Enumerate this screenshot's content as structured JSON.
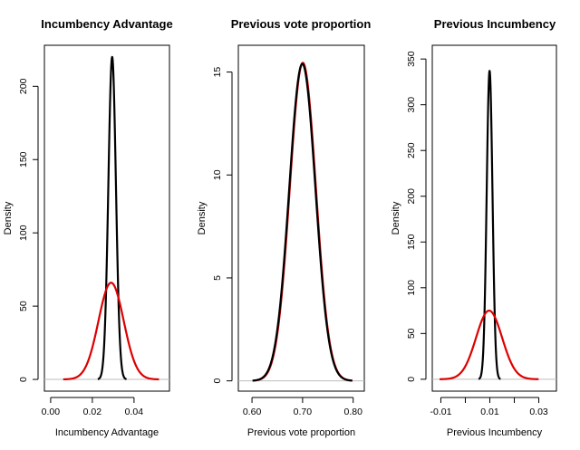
{
  "chart_data": [
    {
      "type": "line",
      "title": "Incumbency Advantage",
      "xlabel": "Incumbency Advantage",
      "ylabel": "Density",
      "xlim": [
        -0.003,
        0.057
      ],
      "ylim": [
        -8,
        228
      ],
      "xticks": [
        0.0,
        0.02,
        0.04
      ],
      "xtick_labels": [
        "0.00",
        "0.02",
        "0.04"
      ],
      "yticks": [
        0,
        50,
        100,
        150,
        200
      ],
      "ytick_labels": [
        "0",
        "50",
        "100",
        "150",
        "200"
      ],
      "zero_line": true,
      "series": [
        {
          "color": "#000000",
          "kind": "normal",
          "mean": 0.0295,
          "peak": 220
        },
        {
          "color": "#dd0000",
          "kind": "normal",
          "mean": 0.029,
          "peak": 66
        }
      ]
    },
    {
      "type": "line",
      "title": "Previous vote proportion",
      "xlabel": "Previous vote proportion",
      "ylabel": "Density",
      "xlim": [
        0.573,
        0.822
      ],
      "ylim": [
        -0.5,
        16.3
      ],
      "xticks": [
        0.6,
        0.7,
        0.8
      ],
      "xtick_labels": [
        "0.60",
        "0.70",
        "0.80"
      ],
      "yticks": [
        0,
        5,
        10,
        15
      ],
      "ytick_labels": [
        "0",
        "5",
        "10",
        "15"
      ],
      "zero_line": true,
      "series": [
        {
          "color": "#dd0000",
          "kind": "normal",
          "mean": 0.7005,
          "peak": 15.45
        },
        {
          "color": "#000000",
          "kind": "normal",
          "mean": 0.6995,
          "peak": 15.4
        }
      ]
    },
    {
      "type": "line",
      "title": "Previous Incumbency",
      "xlabel": "Previous Incumbency",
      "ylabel": "Density",
      "xlim": [
        -0.0135,
        0.0372
      ],
      "ylim": [
        -13,
        365
      ],
      "xticks": [
        -0.01,
        0.01,
        0.03
      ],
      "xtick_labels": [
        "-0.01",
        "0.01",
        "0.03"
      ],
      "minor_xticks": [
        0.0,
        0.02
      ],
      "yticks": [
        0,
        50,
        100,
        150,
        200,
        250,
        300,
        350
      ],
      "ytick_labels": [
        "0",
        "50",
        "100",
        "150",
        "200",
        "250",
        "300",
        "350"
      ],
      "zero_line": true,
      "series": [
        {
          "color": "#000000",
          "kind": "normal",
          "mean": 0.0099,
          "peak": 337
        },
        {
          "color": "#dd0000",
          "kind": "normal",
          "mean": 0.0097,
          "peak": 75
        }
      ]
    }
  ]
}
